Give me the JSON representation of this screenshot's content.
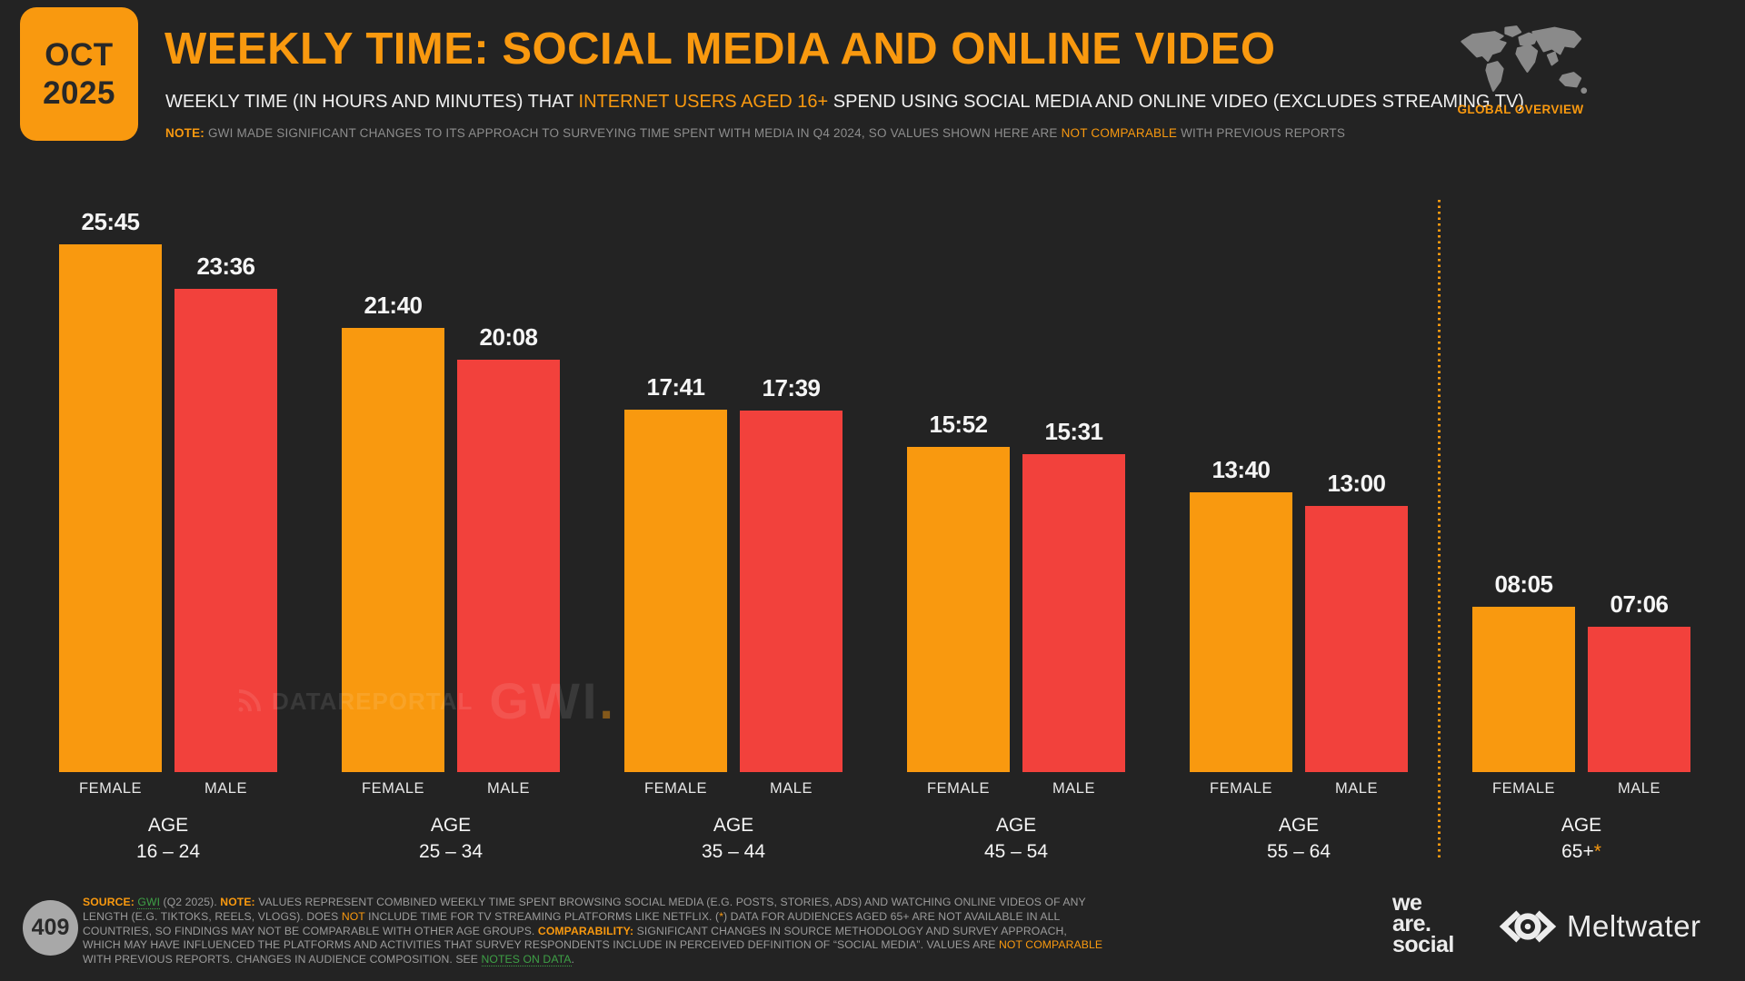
{
  "date_badge": {
    "month": "OCT",
    "year": "2025"
  },
  "header": {
    "title": "WEEKLY TIME: SOCIAL MEDIA AND ONLINE VIDEO",
    "subtitle_pre": "WEEKLY TIME (IN HOURS AND MINUTES) THAT ",
    "subtitle_highlight": "INTERNET USERS AGED 16+",
    "subtitle_post": " SPEND USING SOCIAL MEDIA AND ONLINE VIDEO (EXCLUDES STREAMING TV)",
    "note_label": "NOTE:",
    "note_pre": " GWI MADE SIGNIFICANT CHANGES TO ITS APPROACH TO SURVEYING TIME SPENT WITH MEDIA IN Q4 2024, SO VALUES SHOWN HERE ARE ",
    "note_highlight": "NOT COMPARABLE",
    "note_post": " WITH PREVIOUS REPORTS",
    "region_label": "GLOBAL OVERVIEW"
  },
  "chart_data": {
    "type": "bar",
    "title": "WEEKLY TIME: SOCIAL MEDIA AND ONLINE VIDEO",
    "unit": "hours:minutes per week",
    "category_label": "AGE",
    "categories": [
      "16 – 24",
      "25 – 34",
      "35 – 44",
      "45 – 54",
      "55 – 64",
      "65+"
    ],
    "last_category_suffix": "*",
    "series": [
      {
        "name": "FEMALE",
        "color": "#F9990F",
        "values": [
          "25:45",
          "21:40",
          "17:41",
          "15:52",
          "13:40",
          "08:05"
        ],
        "minutes": [
          1545,
          1300,
          1061,
          952,
          820,
          485
        ]
      },
      {
        "name": "MALE",
        "color": "#F2413C",
        "values": [
          "23:36",
          "20:08",
          "17:39",
          "15:31",
          "13:00",
          "07:06"
        ],
        "minutes": [
          1416,
          1208,
          1059,
          931,
          780,
          426
        ]
      }
    ],
    "ylim_minutes": [
      0,
      1620
    ],
    "grid": false,
    "legend_position": "below-bars",
    "separator_after_category": "55 – 64"
  },
  "watermark": {
    "datareportal": "DATAREPORTAL",
    "gwi": "GWI",
    "gwi_dot": "."
  },
  "footer": {
    "page_number": "409",
    "source_segments": [
      {
        "t": "SOURCE: ",
        "c": "ob"
      },
      {
        "t": "GWI",
        "c": "gl"
      },
      {
        "t": " (Q2 2025). ",
        "c": "g"
      },
      {
        "t": "NOTE: ",
        "c": "ob"
      },
      {
        "t": "VALUES REPRESENT COMBINED WEEKLY TIME SPENT BROWSING SOCIAL MEDIA (E.G. POSTS, STORIES, ADS) AND WATCHING ONLINE VIDEOS OF ANY LENGTH (E.G. TIKTOKS, REELS, VLOGS). DOES ",
        "c": "g"
      },
      {
        "t": "NOT",
        "c": "o"
      },
      {
        "t": " INCLUDE TIME FOR TV STREAMING PLATFORMS LIKE NETFLIX. (",
        "c": "g"
      },
      {
        "t": "*",
        "c": "o"
      },
      {
        "t": ") DATA FOR AUDIENCES AGED 65+ ARE NOT AVAILABLE IN ALL COUNTRIES, SO FINDINGS MAY NOT BE COMPARABLE WITH OTHER AGE GROUPS. ",
        "c": "g"
      },
      {
        "t": "COMPARABILITY: ",
        "c": "ob"
      },
      {
        "t": "SIGNIFICANT CHANGES IN SOURCE METHODOLOGY AND SURVEY APPROACH, WHICH MAY HAVE INFLUENCED THE PLATFORMS AND ACTIVITIES THAT SURVEY RESPONDENTS INCLUDE IN PERCEIVED DEFINITION OF “SOCIAL MEDIA”. VALUES ARE ",
        "c": "g"
      },
      {
        "t": "NOT COMPARABLE",
        "c": "o"
      },
      {
        "t": " WITH PREVIOUS REPORTS. CHANGES IN AUDIENCE COMPOSITION. SEE ",
        "c": "g"
      },
      {
        "t": "NOTES ON DATA",
        "c": "gl"
      },
      {
        "t": ".",
        "c": "g"
      }
    ]
  },
  "logos": {
    "we_are_social": {
      "line1": "we",
      "line2": "are.",
      "line3": "social"
    },
    "meltwater": "Meltwater"
  },
  "colors": {
    "background": "#232323",
    "orange": "#F9990F",
    "red": "#F2413C",
    "green_link": "#3EA046",
    "footer_gray": "#9B9B9B",
    "label_white": "#F5F5F5",
    "map_gray": "#8A8A8A"
  }
}
